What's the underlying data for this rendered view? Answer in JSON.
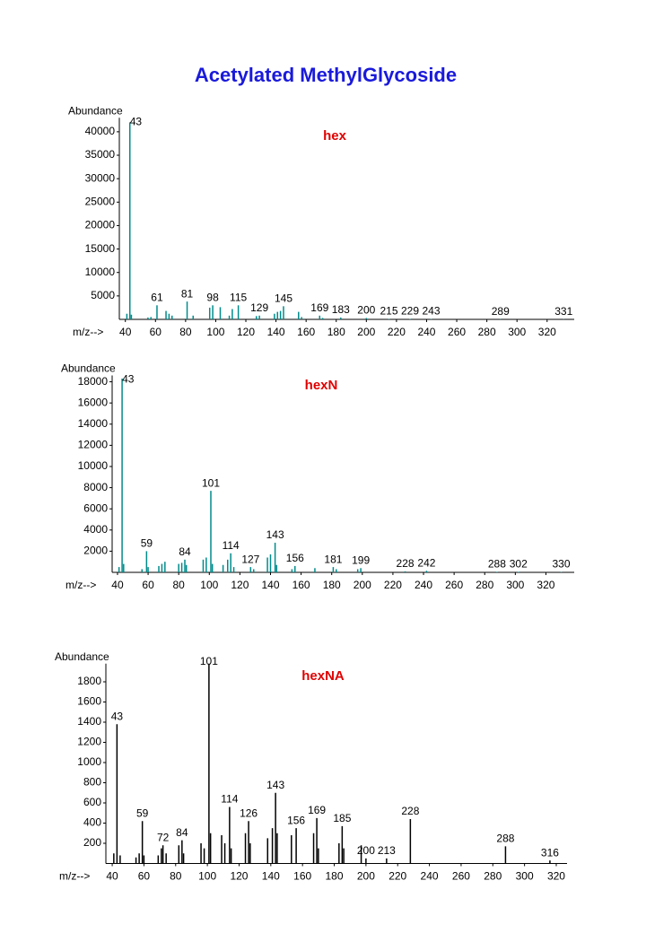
{
  "title": "Acetylated MethylGlycoside",
  "chart_data": [
    {
      "type": "bar",
      "title": "hex",
      "y_label": "Abundance",
      "x_label": "m/z-->",
      "color": "#008b8b",
      "x": [
        41,
        43,
        44,
        55,
        57,
        61,
        67,
        69,
        71,
        81,
        85,
        96,
        98,
        103,
        109,
        111,
        115,
        127,
        129,
        139,
        141,
        143,
        145,
        155,
        157,
        169,
        171,
        183,
        200,
        215,
        229,
        243,
        289,
        331
      ],
      "values": [
        1200,
        42000,
        1000,
        400,
        500,
        3000,
        1800,
        1200,
        800,
        3800,
        800,
        2500,
        3000,
        2600,
        800,
        2200,
        3000,
        700,
        800,
        1200,
        1600,
        1800,
        2800,
        1600,
        500,
        800,
        300,
        400,
        300,
        100,
        100,
        100,
        50,
        50
      ],
      "peak_labels": [
        43,
        61,
        81,
        98,
        115,
        129,
        145,
        169,
        183,
        200,
        215,
        229,
        243,
        289,
        331
      ],
      "xlim": [
        36,
        338
      ],
      "xticks": [
        40,
        60,
        80,
        100,
        120,
        140,
        160,
        180,
        200,
        220,
        240,
        260,
        280,
        300,
        320
      ],
      "ylim": [
        0,
        43000
      ],
      "yticks": [
        5000,
        10000,
        15000,
        20000,
        25000,
        30000,
        35000,
        40000
      ]
    },
    {
      "type": "bar",
      "title": "hexN",
      "y_label": "Abundance",
      "x_label": "m/z-->",
      "color": "#008b8b",
      "x": [
        41,
        43,
        44,
        56,
        59,
        60,
        67,
        69,
        71,
        80,
        82,
        84,
        85,
        96,
        98,
        101,
        102,
        109,
        112,
        114,
        116,
        127,
        129,
        138,
        140,
        143,
        144,
        154,
        156,
        169,
        181,
        183,
        197,
        199,
        228,
        242,
        288,
        302,
        330
      ],
      "values": [
        500,
        18300,
        800,
        300,
        2000,
        500,
        600,
        800,
        1000,
        800,
        900,
        1200,
        700,
        1200,
        1400,
        7700,
        800,
        700,
        1200,
        1800,
        500,
        500,
        300,
        1400,
        1700,
        2800,
        700,
        300,
        600,
        400,
        500,
        300,
        300,
        400,
        100,
        150,
        50,
        50,
        50
      ],
      "peak_labels": [
        43,
        59,
        84,
        101,
        114,
        127,
        143,
        156,
        181,
        199,
        228,
        242,
        288,
        302,
        330
      ],
      "xlim": [
        36.5,
        338.5
      ],
      "xticks": [
        40,
        60,
        80,
        100,
        120,
        140,
        160,
        180,
        200,
        220,
        240,
        260,
        280,
        300,
        320
      ],
      "ylim": [
        0,
        18600
      ],
      "yticks": [
        2000,
        4000,
        6000,
        8000,
        10000,
        12000,
        14000,
        16000,
        18000
      ]
    },
    {
      "type": "bar",
      "title": "hexNA",
      "y_label": "Abundance",
      "x_label": "m/z-->",
      "color": "#000000",
      "x": [
        41,
        43,
        45,
        55,
        57,
        59,
        60,
        69,
        71,
        72,
        74,
        82,
        84,
        85,
        96,
        98,
        101,
        102,
        109,
        111,
        114,
        115,
        124,
        126,
        127,
        138,
        141,
        143,
        144,
        153,
        156,
        167,
        169,
        170,
        183,
        185,
        186,
        197,
        200,
        213,
        228,
        288,
        316
      ],
      "values": [
        100,
        1380,
        80,
        60,
        100,
        420,
        80,
        80,
        150,
        180,
        100,
        180,
        230,
        100,
        200,
        150,
        1980,
        300,
        280,
        200,
        560,
        150,
        300,
        420,
        200,
        250,
        350,
        700,
        300,
        280,
        350,
        300,
        450,
        150,
        200,
        370,
        150,
        180,
        50,
        50,
        440,
        170,
        30
      ],
      "peak_labels": [
        43,
        59,
        72,
        84,
        101,
        114,
        126,
        143,
        156,
        169,
        185,
        200,
        213,
        228,
        288,
        316
      ],
      "xlim": [
        36,
        326.8
      ],
      "xticks": [
        40,
        60,
        80,
        100,
        120,
        140,
        160,
        180,
        200,
        220,
        240,
        260,
        280,
        300,
        320
      ],
      "ylim": [
        0,
        1980
      ],
      "yticks": [
        200,
        400,
        600,
        800,
        1000,
        1200,
        1400,
        1600,
        1800
      ]
    }
  ]
}
